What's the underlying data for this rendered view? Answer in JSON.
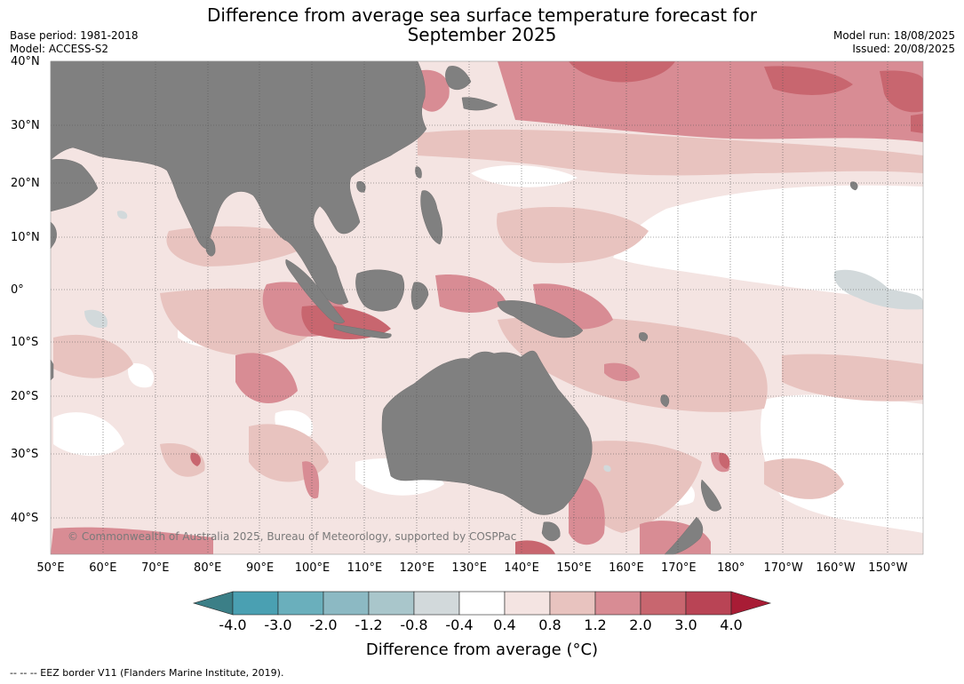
{
  "title_line1": "Difference from average sea surface temperature forecast for",
  "title_line2": "September 2025",
  "base_period": "Base period: 1981-2018",
  "model": "Model: ACCESS-S2",
  "model_run": "Model run: 18/08/2025",
  "issued": "Issued: 20/08/2025",
  "latitudes": [
    "40°N",
    "30°N",
    "20°N",
    "10°N",
    "0°",
    "10°S",
    "20°S",
    "30°S",
    "40°S"
  ],
  "longitudes": [
    "50°E",
    "60°E",
    "70°E",
    "80°E",
    "90°E",
    "100°E",
    "110°E",
    "120°E",
    "130°E",
    "140°E",
    "150°E",
    "160°E",
    "170°E",
    "180°",
    "170°W",
    "160°W",
    "150°W"
  ],
  "copyright": "© Commonwealth of Australia 2025, Bureau of Meteorology, supported by COSPPac",
  "colorbar": {
    "label": "Difference from average (°C)",
    "ticks": [
      "-4.0",
      "-3.0",
      "-2.0",
      "-1.2",
      "-0.8",
      "-0.4",
      "0.4",
      "0.8",
      "1.2",
      "2.0",
      "3.0",
      "4.0"
    ],
    "colors": [
      "#3b7f87",
      "#4aa0b2",
      "#6aafbc",
      "#8cb9c3",
      "#a9c6cb",
      "#d2d9db",
      "#ffffff",
      "#f4e4e2",
      "#e8c3bf",
      "#d88c94",
      "#c8666f",
      "#b94455",
      "#a81c35"
    ]
  },
  "colors": {
    "land": "#808080",
    "ocean_base": "#f4e4e2"
  },
  "footnote": "--  --  -- EEZ border V11 (Flanders Marine Institute, 2019)."
}
